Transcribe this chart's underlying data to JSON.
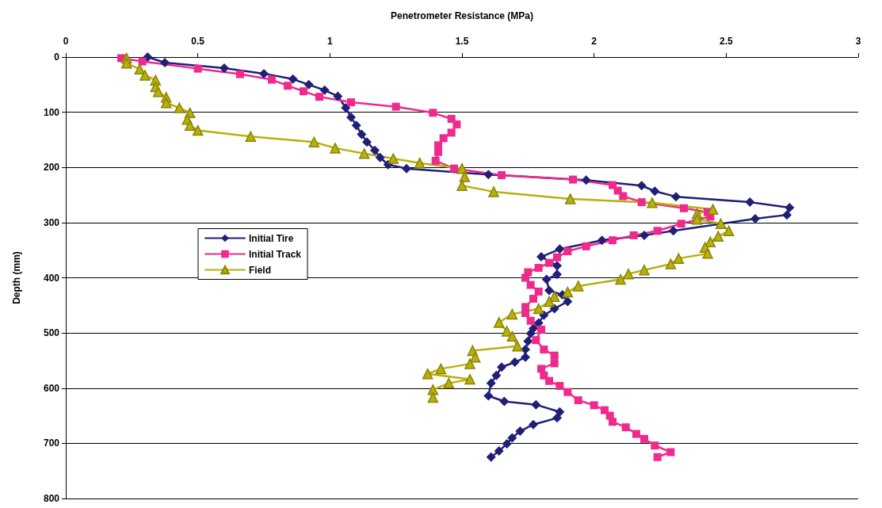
{
  "chart_data": {
    "type": "line",
    "xlabel": "Penetrometer Resistance (MPa)",
    "ylabel": "Depth (mm)",
    "xlim": [
      0,
      3
    ],
    "xticks": [
      0,
      0.5,
      1,
      1.5,
      2,
      2.5,
      3
    ],
    "ylim": [
      800,
      0
    ],
    "yticks": [
      0,
      100,
      200,
      300,
      400,
      500,
      600,
      700,
      800
    ],
    "grid": "y",
    "legend": "left",
    "line_style": "solid",
    "series": [
      {
        "name": "Initial Tire",
        "color": "#1f1f78",
        "marker": "diamond",
        "x": [
          0.31,
          0.375,
          0.6,
          0.75,
          0.86,
          0.92,
          0.98,
          1.03,
          1.06,
          1.08,
          1.1,
          1.12,
          1.14,
          1.17,
          1.19,
          1.22,
          1.29,
          1.6,
          1.97,
          2.18,
          2.23,
          2.31,
          2.59,
          2.74,
          2.73,
          2.61,
          2.3,
          2.19,
          2.03,
          1.87,
          1.8,
          1.86,
          1.86,
          1.82,
          1.83,
          1.88,
          1.9,
          1.85,
          1.81,
          1.79,
          1.77,
          1.76,
          1.75,
          1.74,
          1.74,
          1.7,
          1.65,
          1.63,
          1.61,
          1.6,
          1.66,
          1.78,
          1.87,
          1.86,
          1.77,
          1.72,
          1.69,
          1.67,
          1.64,
          1.61
        ],
        "values": [
          0,
          10,
          20,
          30,
          40,
          50,
          60,
          71,
          92,
          109,
          124,
          140,
          154,
          169,
          182,
          195,
          202,
          213,
          223,
          233,
          243,
          253,
          263,
          273,
          286,
          293,
          315,
          323,
          332,
          348,
          362,
          378,
          394,
          403,
          423,
          431,
          443,
          456,
          468,
          482,
          492,
          501,
          515,
          530,
          544,
          553,
          562,
          577,
          591,
          614,
          624,
          630,
          643,
          654,
          666,
          678,
          690,
          701,
          714,
          725
        ]
      },
      {
        "name": "Initial Track",
        "color": "#ee2a8c",
        "marker": "square",
        "x": [
          0.21,
          0.29,
          0.5,
          0.66,
          0.78,
          0.84,
          0.9,
          0.96,
          1.08,
          1.25,
          1.39,
          1.46,
          1.48,
          1.46,
          1.43,
          1.41,
          1.41,
          1.4,
          1.47,
          1.65,
          1.92,
          2.07,
          2.09,
          2.11,
          2.18,
          2.34,
          2.43,
          2.44,
          2.33,
          2.24,
          2.15,
          2.07,
          1.97,
          1.9,
          1.86,
          1.83,
          1.79,
          1.75,
          1.74,
          1.76,
          1.79,
          1.77,
          1.74,
          1.74,
          1.76,
          1.8,
          1.78,
          1.81,
          1.85,
          1.85,
          1.8,
          1.81,
          1.83,
          1.87,
          1.9,
          1.94,
          2.0,
          2.04,
          2.06,
          2.07,
          2.12,
          2.16,
          2.19,
          2.23,
          2.29,
          2.24
        ],
        "values": [
          2,
          8,
          21,
          31,
          41,
          52,
          62,
          72,
          82,
          90,
          101,
          112,
          122,
          137,
          147,
          160,
          172,
          188,
          202,
          214,
          222,
          232,
          242,
          252,
          263,
          274,
          281,
          289,
          302,
          315,
          323,
          332,
          343,
          352,
          363,
          373,
          382,
          390,
          400,
          413,
          425,
          438,
          453,
          464,
          478,
          494,
          513,
          530,
          541,
          555,
          565,
          577,
          587,
          596,
          607,
          622,
          631,
          640,
          650,
          661,
          671,
          683,
          692,
          704,
          716,
          725
        ]
      },
      {
        "name": "Field",
        "color": "#b8b010",
        "marker": "triangle",
        "x": [
          0.23,
          0.23,
          0.28,
          0.3,
          0.34,
          0.34,
          0.35,
          0.38,
          0.38,
          0.43,
          0.47,
          0.46,
          0.47,
          0.5,
          0.7,
          0.94,
          1.02,
          1.13,
          1.24,
          1.34,
          1.5,
          1.51,
          1.5,
          1.62,
          1.91,
          2.22,
          2.45,
          2.39,
          2.39,
          2.48,
          2.51,
          2.47,
          2.44,
          2.42,
          2.43,
          2.32,
          2.29,
          2.19,
          2.13,
          2.1,
          1.94,
          1.9,
          1.85,
          1.83,
          1.79,
          1.69,
          1.64,
          1.67,
          1.69,
          1.71,
          1.54,
          1.55,
          1.53,
          1.42,
          1.37,
          1.53,
          1.45,
          1.39,
          1.39
        ],
        "values": [
          2,
          11,
          22,
          33,
          42,
          54,
          63,
          73,
          83,
          92,
          101,
          113,
          124,
          133,
          144,
          154,
          165,
          175,
          184,
          192,
          202,
          217,
          233,
          244,
          257,
          264,
          276,
          284,
          294,
          302,
          315,
          325,
          335,
          345,
          356,
          365,
          375,
          386,
          393,
          403,
          415,
          426,
          434,
          443,
          456,
          466,
          481,
          497,
          506,
          524,
          532,
          544,
          556,
          565,
          574,
          584,
          591,
          603,
          617
        ]
      }
    ]
  }
}
